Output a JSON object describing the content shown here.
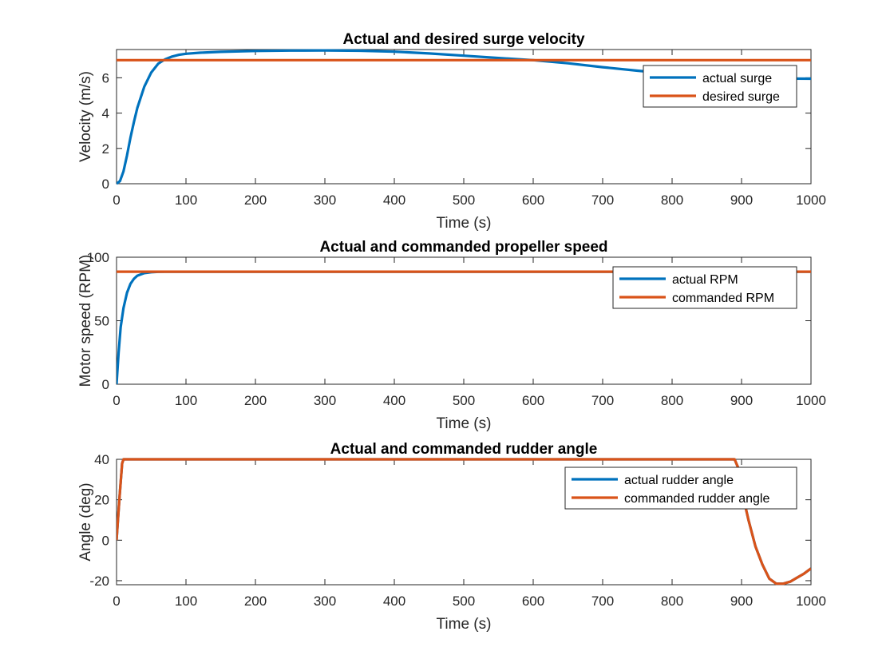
{
  "chart_data": [
    {
      "type": "line",
      "title": "Actual and desired surge velocity",
      "xlabel": "Time (s)",
      "ylabel": "Velocity (m/s)",
      "xlim": [
        0,
        1000
      ],
      "ylim": [
        0,
        7.6
      ],
      "xticks": [
        0,
        100,
        200,
        300,
        400,
        500,
        600,
        700,
        800,
        900,
        1000
      ],
      "yticks": [
        0,
        2,
        4,
        6
      ],
      "legend_position": "top-right",
      "series": [
        {
          "name": "actual surge",
          "color": "#0072BD",
          "x": [
            0,
            5,
            10,
            15,
            20,
            25,
            30,
            40,
            50,
            60,
            70,
            80,
            90,
            100,
            120,
            150,
            200,
            250,
            300,
            350,
            400,
            450,
            500,
            550,
            600,
            650,
            700,
            750,
            800,
            850,
            900,
            950,
            1000
          ],
          "y": [
            0,
            0.15,
            0.7,
            1.6,
            2.6,
            3.5,
            4.3,
            5.5,
            6.3,
            6.8,
            7.05,
            7.2,
            7.3,
            7.36,
            7.42,
            7.47,
            7.52,
            7.54,
            7.55,
            7.53,
            7.48,
            7.38,
            7.25,
            7.12,
            7.0,
            6.82,
            6.6,
            6.4,
            6.22,
            6.08,
            6.0,
            5.96,
            5.95
          ]
        },
        {
          "name": "desired surge",
          "color": "#D95319",
          "x": [
            0,
            1000
          ],
          "y": [
            7,
            7
          ]
        }
      ]
    },
    {
      "type": "line",
      "title": "Actual and commanded propeller speed",
      "xlabel": "Time (s)",
      "ylabel": "Motor speed (RPM)",
      "xlim": [
        0,
        1000
      ],
      "ylim": [
        0,
        100
      ],
      "xticks": [
        0,
        100,
        200,
        300,
        400,
        500,
        600,
        700,
        800,
        900,
        1000
      ],
      "yticks": [
        0,
        50,
        100
      ],
      "legend_position": "top-right",
      "series": [
        {
          "name": "actual RPM",
          "color": "#0072BD",
          "x": [
            0,
            3,
            6,
            10,
            15,
            20,
            25,
            30,
            40,
            50,
            60,
            70,
            100,
            1000
          ],
          "y": [
            0,
            25,
            45,
            60,
            72,
            79,
            83,
            85.5,
            87.5,
            88.2,
            88.5,
            88.6,
            88.6,
            88.6
          ]
        },
        {
          "name": "commanded RPM",
          "color": "#D95319",
          "x": [
            0,
            1000
          ],
          "y": [
            88.6,
            88.6
          ]
        }
      ]
    },
    {
      "type": "line",
      "title": "Actual and commanded rudder angle",
      "xlabel": "Time (s)",
      "ylabel": "Angle (deg)",
      "xlim": [
        0,
        1000
      ],
      "ylim": [
        -22,
        40
      ],
      "xticks": [
        0,
        100,
        200,
        300,
        400,
        500,
        600,
        700,
        800,
        900,
        1000
      ],
      "yticks": [
        -20,
        0,
        20,
        40
      ],
      "legend_position": "top-right",
      "series": [
        {
          "name": "actual rudder angle",
          "color": "#0072BD",
          "x": [
            0,
            4,
            8,
            10,
            12,
            890,
            895,
            900,
            910,
            920,
            930,
            940,
            950,
            960,
            970,
            980,
            990,
            1000
          ],
          "y": [
            0,
            20,
            38,
            40,
            40,
            40,
            36,
            25,
            10,
            -3,
            -12,
            -19,
            -21.5,
            -21.5,
            -20.5,
            -18.5,
            -16.5,
            -14
          ]
        },
        {
          "name": "commanded rudder angle",
          "color": "#D95319",
          "x": [
            0,
            4,
            8,
            10,
            12,
            890,
            895,
            900,
            910,
            920,
            930,
            940,
            950,
            960,
            970,
            980,
            990,
            1000
          ],
          "y": [
            0,
            20,
            38,
            40,
            40,
            40,
            36,
            25,
            10,
            -3,
            -12,
            -19,
            -21.5,
            -21.5,
            -20.5,
            -18.5,
            -16.5,
            -14
          ]
        }
      ]
    }
  ]
}
